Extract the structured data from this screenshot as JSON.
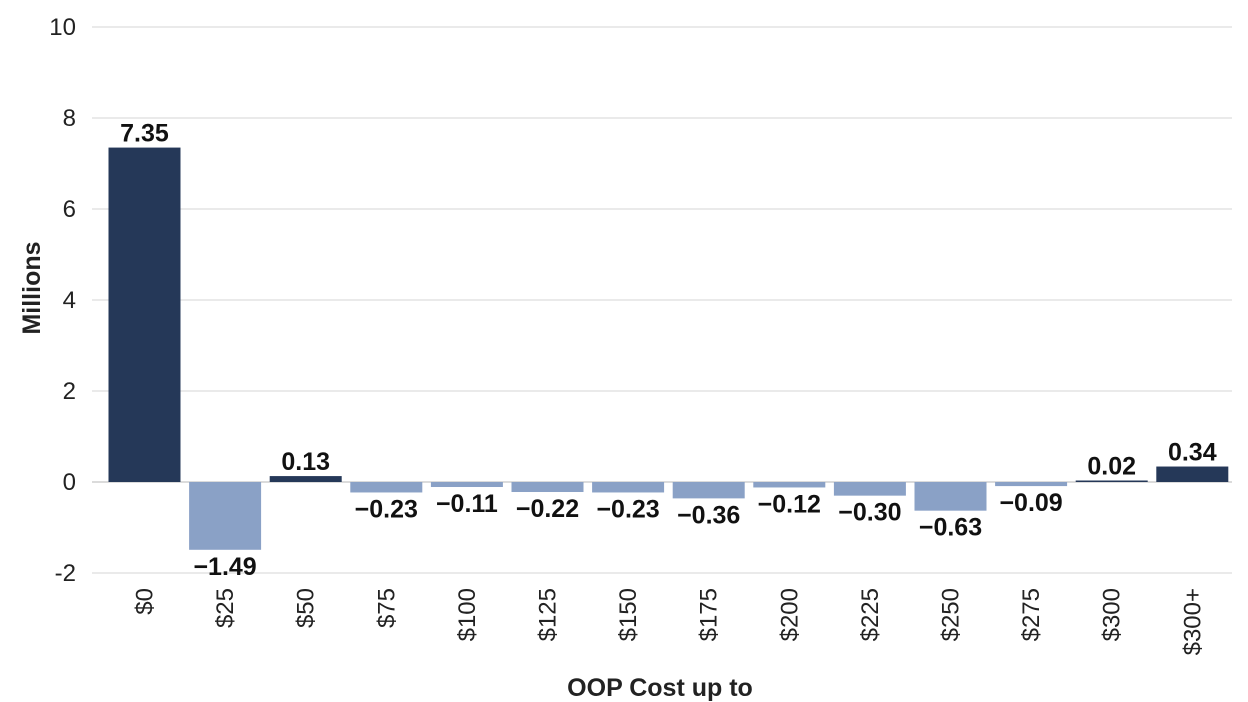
{
  "chart_data": {
    "type": "bar",
    "categories": [
      "$0",
      "$25",
      "$50",
      "$75",
      "$100",
      "$125",
      "$150",
      "$175",
      "$200",
      "$225",
      "$250",
      "$275",
      "$300",
      "$300+"
    ],
    "values": [
      7.35,
      -1.49,
      0.13,
      -0.23,
      -0.11,
      -0.22,
      -0.23,
      -0.36,
      -0.12,
      -0.3,
      -0.63,
      -0.09,
      0.02,
      0.34
    ],
    "data_labels": [
      "7.35",
      "−1.49",
      "0.13",
      "−0.23",
      "−0.11",
      "−0.22",
      "−0.23",
      "−0.36",
      "−0.12",
      "−0.30",
      "−0.63",
      "−0.09",
      "0.02",
      "0.34"
    ],
    "xlabel": "OOP Cost up to",
    "ylabel": "Millions",
    "ylim": [
      -2,
      10
    ],
    "yticks": [
      -2,
      0,
      2,
      4,
      6,
      8,
      10
    ],
    "grid": true,
    "legend": false,
    "colors": {
      "positive": "#253858",
      "negative": "#8aa1c6"
    }
  }
}
